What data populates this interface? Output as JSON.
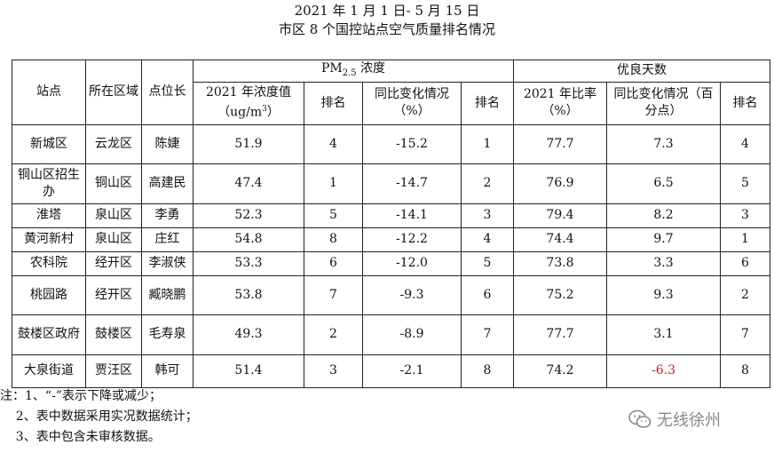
{
  "title": {
    "line1": "2021 年 1 月 1 日- 5 月 15 日",
    "line2": "市区 8 个国控站点空气质量排名情况"
  },
  "header": {
    "station": "站点",
    "district": "所在区域",
    "chief": "点位长",
    "pm_group_prefix": "PM",
    "pm_group_sub": "2.5",
    "pm_group_suffix": " 浓度",
    "good_group": "优良天数",
    "pm_conc_line1": "2021 年浓度值",
    "pm_conc_line2_prefix": "（ug/m",
    "pm_conc_line2_sup": "3",
    "pm_conc_line2_suffix": "）",
    "rank": "排名",
    "pm_change": "同比变化情况（%）",
    "good_ratio": "2021 年比率（%）",
    "good_change": "同比变化情况（百分点）"
  },
  "rows": [
    {
      "station": "新城区",
      "district": "云龙区",
      "chief": "陈婕",
      "pm": "51.9",
      "pm_rank": "4",
      "pm_change": "-15.2",
      "pm_change_rank": "1",
      "ratio": "77.7",
      "ratio_change": "7.3",
      "ratio_rank": "4"
    },
    {
      "station": "铜山区招生办",
      "district": "铜山区",
      "chief": "高建民",
      "pm": "47.4",
      "pm_rank": "1",
      "pm_change": "-14.7",
      "pm_change_rank": "2",
      "ratio": "76.9",
      "ratio_change": "6.5",
      "ratio_rank": "5"
    },
    {
      "station": "淮塔",
      "district": "泉山区",
      "chief": "李勇",
      "pm": "52.3",
      "pm_rank": "5",
      "pm_change": "-14.1",
      "pm_change_rank": "3",
      "ratio": "79.4",
      "ratio_change": "8.2",
      "ratio_rank": "3"
    },
    {
      "station": "黄河新村",
      "district": "泉山区",
      "chief": "庄红",
      "pm": "54.8",
      "pm_rank": "8",
      "pm_change": "-12.2",
      "pm_change_rank": "4",
      "ratio": "74.4",
      "ratio_change": "9.7",
      "ratio_rank": "1"
    },
    {
      "station": "农科院",
      "district": "经开区",
      "chief": "李淑侠",
      "pm": "53.3",
      "pm_rank": "6",
      "pm_change": "-12.0",
      "pm_change_rank": "5",
      "ratio": "73.8",
      "ratio_change": "3.3",
      "ratio_rank": "6"
    },
    {
      "station": "桃园路",
      "district": "经开区",
      "chief": "臧晓鹏",
      "pm": "53.8",
      "pm_rank": "7",
      "pm_change": "-9.3",
      "pm_change_rank": "6",
      "ratio": "75.2",
      "ratio_change": "9.3",
      "ratio_rank": "2"
    },
    {
      "station": "鼓楼区政府",
      "district": "鼓楼区",
      "chief": "毛寿泉",
      "pm": "49.3",
      "pm_rank": "2",
      "pm_change": "-8.9",
      "pm_change_rank": "7",
      "ratio": "77.7",
      "ratio_change": "3.1",
      "ratio_rank": "7"
    },
    {
      "station": "大泉街道",
      "district": "贾汪区",
      "chief": "韩可",
      "pm": "51.4",
      "pm_rank": "3",
      "pm_change": "-2.1",
      "pm_change_rank": "8",
      "ratio": "74.2",
      "ratio_change": "-6.3",
      "ratio_rank": "8"
    }
  ],
  "notes": [
    "注：1、“-”表示下降或减少；",
    "    2、表中数据采用实况数据统计；",
    "    3、表中包含未审核数据。"
  ],
  "watermark": {
    "text": "无线徐州",
    "icon": "wechat-icon"
  },
  "colors": {
    "negative_highlight": "#d21f1f"
  }
}
